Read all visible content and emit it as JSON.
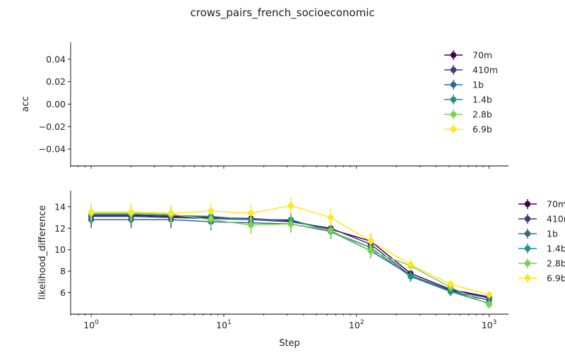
{
  "chart_data": {
    "type": "line",
    "title": "crows_pairs_french_socioeconomic",
    "xlabel": "Step",
    "xscale": "log",
    "xlim": [
      0.7,
      1400
    ],
    "x_tick_labels": [
      {
        "base": "10",
        "exp": "0",
        "value": 1
      },
      {
        "base": "10",
        "exp": "1",
        "value": 10
      },
      {
        "base": "10",
        "exp": "2",
        "value": 100
      },
      {
        "base": "10",
        "exp": "3",
        "value": 1000
      }
    ],
    "legend_title_series": [
      "70m",
      "410m",
      "1b",
      "1.4b",
      "2.8b",
      "6.9b"
    ],
    "series_colors": {
      "70m": "#440154",
      "410m": "#443983",
      "1b": "#31688e",
      "1.4b": "#21918c",
      "2.8b": "#7ad151",
      "6.9b": "#fde725"
    },
    "subplots": [
      {
        "ylabel": "acc",
        "ylim": [
          -0.055,
          0.055
        ],
        "y_ticks": [
          {
            "value": 0.04,
            "label": "0.04"
          },
          {
            "value": 0.02,
            "label": "0.02"
          },
          {
            "value": 0.0,
            "label": "0.00"
          },
          {
            "value": -0.02,
            "label": "−0.02"
          },
          {
            "value": -0.04,
            "label": "−0.04"
          }
        ],
        "legend_position": "top-right inside",
        "series": []
      },
      {
        "ylabel": "likelihood_difference",
        "ylim": [
          4.0,
          15.5
        ],
        "y_ticks": [
          {
            "value": 14,
            "label": "14"
          },
          {
            "value": 12,
            "label": "12"
          },
          {
            "value": 10,
            "label": "10"
          },
          {
            "value": 8,
            "label": "8"
          },
          {
            "value": 6,
            "label": "6"
          }
        ],
        "legend_position": "right outside",
        "x": [
          1,
          2,
          4,
          8,
          16,
          32,
          64,
          128,
          256,
          512,
          1000
        ],
        "series": [
          {
            "name": "70m",
            "values": [
              13.2,
              13.2,
              13.1,
              13.0,
              12.9,
              12.7,
              11.9,
              10.8,
              7.8,
              6.3,
              5.6
            ],
            "errors": [
              0.8,
              0.8,
              0.8,
              0.8,
              0.8,
              0.8,
              0.7,
              0.7,
              0.5,
              0.4,
              0.4
            ]
          },
          {
            "name": "410m",
            "values": [
              13.1,
              13.1,
              13.0,
              12.9,
              12.8,
              12.6,
              12.0,
              10.5,
              7.6,
              6.2,
              5.5
            ],
            "errors": [
              0.8,
              0.8,
              0.8,
              0.8,
              0.8,
              0.8,
              0.7,
              0.7,
              0.5,
              0.4,
              0.4
            ]
          },
          {
            "name": "1b",
            "values": [
              12.8,
              12.8,
              12.8,
              12.6,
              12.5,
              12.4,
              11.7,
              9.9,
              7.6,
              6.1,
              5.3
            ],
            "errors": [
              0.8,
              0.8,
              0.8,
              0.8,
              0.8,
              0.8,
              0.7,
              0.7,
              0.5,
              0.4,
              0.4
            ]
          },
          {
            "name": "1.4b",
            "values": [
              13.3,
              13.3,
              13.2,
              13.1,
              12.8,
              12.8,
              11.7,
              10.2,
              7.5,
              6.1,
              5.0
            ],
            "errors": [
              0.8,
              0.8,
              0.8,
              0.8,
              0.8,
              0.8,
              0.7,
              0.7,
              0.5,
              0.4,
              0.4
            ]
          },
          {
            "name": "2.8b",
            "values": [
              13.4,
              13.4,
              13.3,
              12.8,
              12.3,
              12.4,
              11.8,
              9.9,
              8.5,
              6.5,
              4.9
            ],
            "errors": [
              0.8,
              0.8,
              0.8,
              0.8,
              0.8,
              0.8,
              0.7,
              0.7,
              0.5,
              0.4,
              0.4
            ]
          },
          {
            "name": "6.9b",
            "values": [
              13.5,
              13.5,
              13.4,
              13.6,
              13.4,
              14.1,
              13.0,
              10.8,
              8.6,
              6.8,
              5.8
            ],
            "errors": [
              0.8,
              0.8,
              0.8,
              0.8,
              0.8,
              0.8,
              0.8,
              0.7,
              0.5,
              0.4,
              0.4
            ]
          }
        ]
      }
    ]
  }
}
